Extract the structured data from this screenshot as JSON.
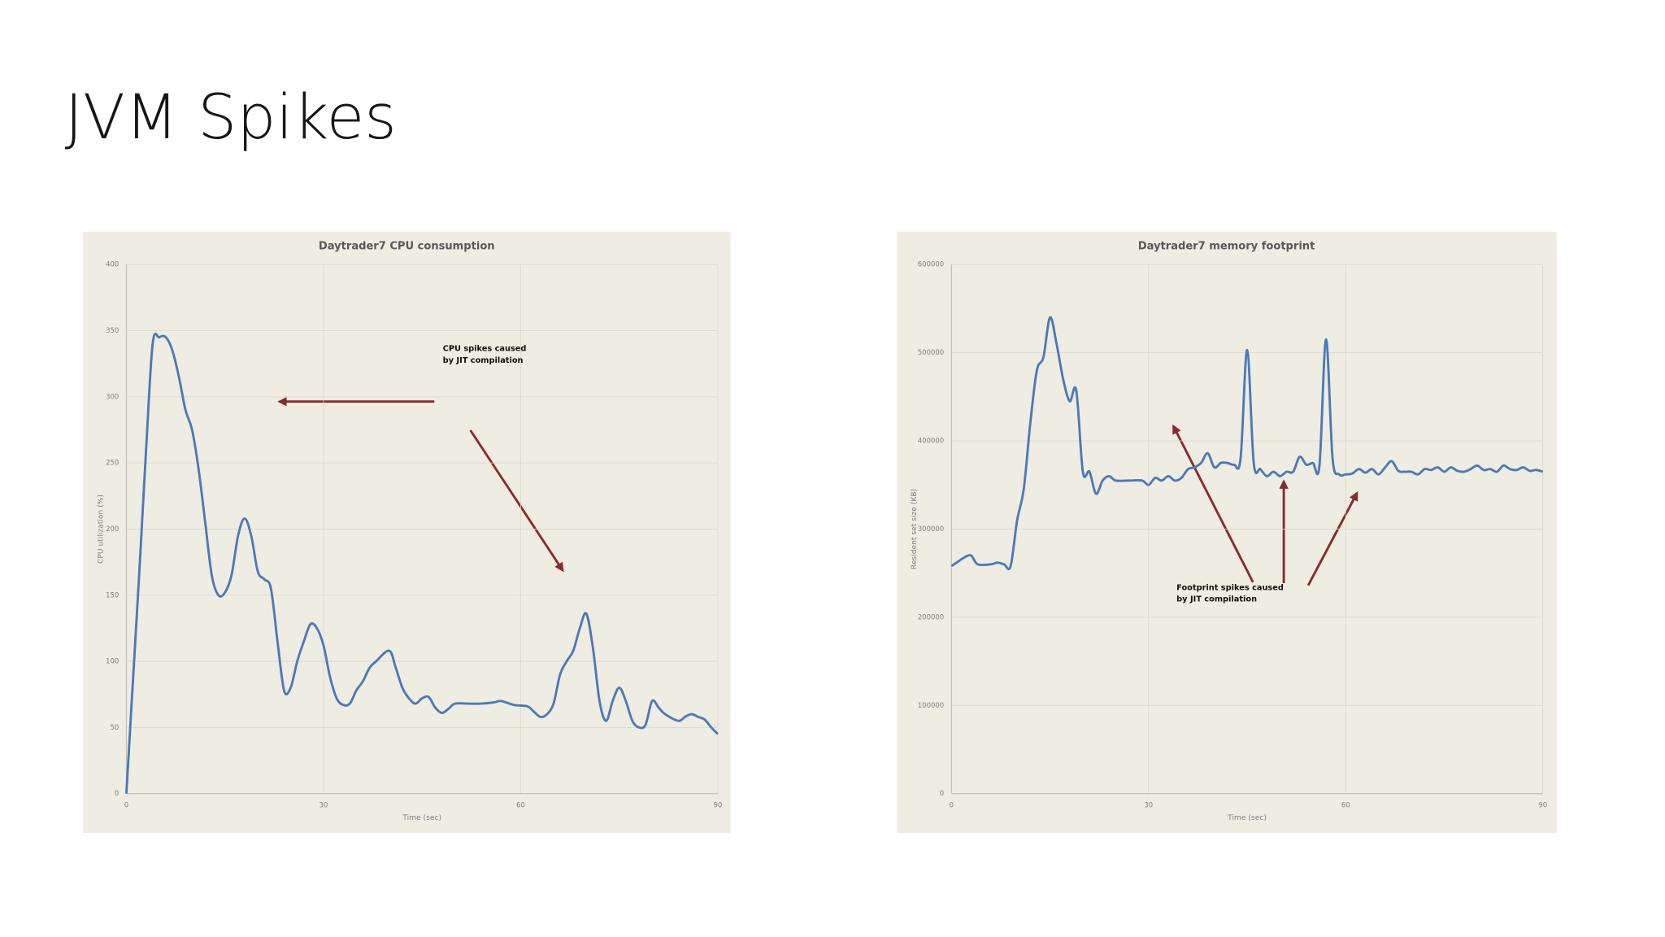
{
  "header": {
    "title": "JVM Spikes"
  },
  "chart_data": [
    {
      "type": "line",
      "title": "Daytrader7 CPU consumption",
      "xlabel": "Time (sec)",
      "ylabel": "CPU utilization (%)",
      "annotation": [
        "CPU spikes caused",
        "by JIT compilation"
      ],
      "xlim": [
        0,
        90
      ],
      "xticks": [
        0,
        30,
        60,
        90
      ],
      "ylim": [
        0,
        400
      ],
      "yticks": [
        0,
        50,
        100,
        150,
        200,
        250,
        300,
        350,
        400
      ],
      "grid": true,
      "series": [
        {
          "name": "CPU",
          "color": "#4a7ab8",
          "x": [
            0,
            1,
            2,
            3,
            4,
            5,
            6,
            7,
            8,
            9,
            10,
            11,
            12,
            13,
            14,
            15,
            16,
            17,
            18,
            19,
            20,
            21,
            22,
            23,
            24,
            25,
            26,
            27,
            28,
            29,
            30,
            31,
            32,
            33,
            34,
            35,
            36,
            37,
            38,
            40,
            41,
            42,
            43,
            44,
            45,
            46,
            47,
            48,
            49,
            50,
            52,
            54,
            56,
            57,
            59,
            61,
            62,
            63,
            64,
            65,
            66,
            67,
            68,
            69,
            70,
            71,
            72,
            73,
            74,
            75,
            76,
            77,
            78,
            79,
            80,
            81,
            82,
            84,
            85,
            86,
            87,
            88,
            89,
            90
          ],
          "values": [
            0,
            85,
            170,
            260,
            340,
            345,
            345,
            335,
            315,
            290,
            275,
            245,
            205,
            165,
            150,
            152,
            165,
            195,
            208,
            195,
            168,
            162,
            155,
            115,
            78,
            80,
            100,
            115,
            128,
            125,
            112,
            88,
            72,
            67,
            68,
            78,
            85,
            95,
            100,
            108,
            95,
            80,
            72,
            68,
            72,
            73,
            65,
            61,
            64,
            68,
            68,
            68,
            69,
            70,
            67,
            66,
            62,
            58,
            60,
            68,
            90,
            100,
            108,
            125,
            136,
            110,
            70,
            55,
            70,
            80,
            70,
            55,
            50,
            52,
            70,
            65,
            60,
            55,
            58,
            60,
            58,
            56,
            50,
            45
          ]
        }
      ]
    },
    {
      "type": "line",
      "title": "Daytrader7 memory footprint",
      "xlabel": "Time (sec)",
      "ylabel": "Resident set size (KB)",
      "annotation": [
        "Footprint spikes caused",
        "by JIT compilation"
      ],
      "xlim": [
        0,
        90
      ],
      "xticks": [
        0,
        30,
        60,
        90
      ],
      "ylim": [
        0,
        600000
      ],
      "yticks": [
        0,
        100000,
        200000,
        300000,
        400000,
        500000,
        600000
      ],
      "grid": true,
      "series": [
        {
          "name": "Memory",
          "color": "#4a7ab8",
          "x": [
            0,
            1,
            2,
            3,
            4,
            6,
            7,
            8,
            9,
            10,
            11,
            12,
            13,
            14,
            15,
            16,
            17,
            18,
            19,
            20,
            21,
            22,
            23,
            24,
            25,
            27,
            29,
            30,
            31,
            32,
            33,
            34,
            35,
            36,
            37,
            38,
            39,
            40,
            41,
            42,
            43,
            44,
            45,
            46,
            47,
            48,
            49,
            50,
            51,
            52,
            53,
            54,
            55,
            56,
            57,
            58,
            59,
            60,
            61,
            62,
            63,
            64,
            65,
            66,
            67,
            68,
            69,
            70,
            71,
            72,
            73,
            74,
            75,
            76,
            77,
            78,
            79,
            80,
            81,
            82,
            83,
            84,
            85,
            86,
            87,
            88,
            89,
            90
          ],
          "values": [
            258000,
            263000,
            268000,
            270000,
            260000,
            260000,
            262000,
            260000,
            258000,
            310000,
            345000,
            420000,
            480000,
            495000,
            540000,
            510000,
            470000,
            445000,
            457000,
            365000,
            365000,
            340000,
            355000,
            360000,
            355000,
            355000,
            355000,
            350000,
            358000,
            355000,
            360000,
            355000,
            358000,
            368000,
            370000,
            375000,
            386000,
            370000,
            375000,
            375000,
            373000,
            380000,
            503000,
            375000,
            368000,
            360000,
            365000,
            360000,
            365000,
            365000,
            382000,
            373000,
            375000,
            372000,
            515000,
            380000,
            362000,
            362000,
            363000,
            368000,
            364000,
            368000,
            362000,
            370000,
            377000,
            366000,
            365000,
            365000,
            362000,
            368000,
            367000,
            370000,
            365000,
            370000,
            366000,
            365000,
            368000,
            372000,
            367000,
            368000,
            365000,
            372000,
            368000,
            367000,
            370000,
            366000,
            367000,
            365000
          ]
        }
      ]
    }
  ]
}
